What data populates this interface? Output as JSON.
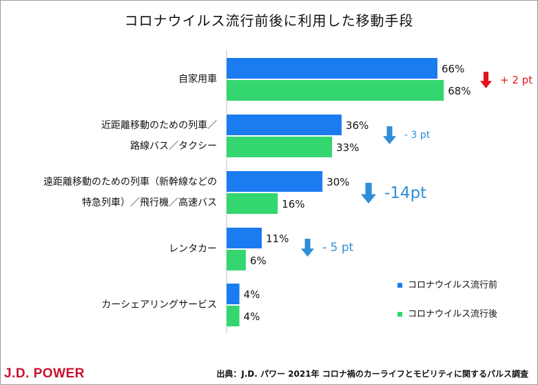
{
  "chart_data": {
    "type": "bar",
    "orientation": "horizontal",
    "title": "コロナウイルス流行前後に利用した移動手段",
    "categories": [
      [
        "自家用車"
      ],
      [
        "近距離移動のための列車／",
        "路線バス／タクシー"
      ],
      [
        "遠距離移動のための列車（新幹線などの",
        "特急列車）／飛行機／高速バス"
      ],
      [
        "レンタカー"
      ],
      [
        "カーシェアリングサービス"
      ]
    ],
    "series": [
      {
        "name": "コロナウイルス流行前",
        "color": "#1a7cf0",
        "values": [
          66,
          36,
          30,
          11,
          4
        ],
        "labels": [
          "66%",
          "36%",
          "30%",
          "11%",
          "4%"
        ]
      },
      {
        "name": "コロナウイルス流行後",
        "color": "#33d66f",
        "values": [
          68,
          33,
          16,
          6,
          4
        ],
        "labels": [
          "68%",
          "33%",
          "16%",
          "6%",
          "4%"
        ]
      }
    ],
    "changes": [
      {
        "text": "+ 2 pt",
        "direction": "up",
        "color": "#e0151a"
      },
      {
        "text": "- 3 pt",
        "direction": "down",
        "color": "#2e8fd6"
      },
      {
        "text": "-14pt",
        "direction": "down",
        "color": "#2e8fd6"
      },
      {
        "text": "- 5 pt",
        "direction": "down",
        "color": "#2e8fd6"
      }
    ],
    "legend": "bottom-right",
    "grid": false
  },
  "footer": {
    "logo": "J.D. POWER",
    "source": "出典：J.D. パワー 2021年 コロナ禍のカーライフとモビリティに関するパルス調査"
  }
}
